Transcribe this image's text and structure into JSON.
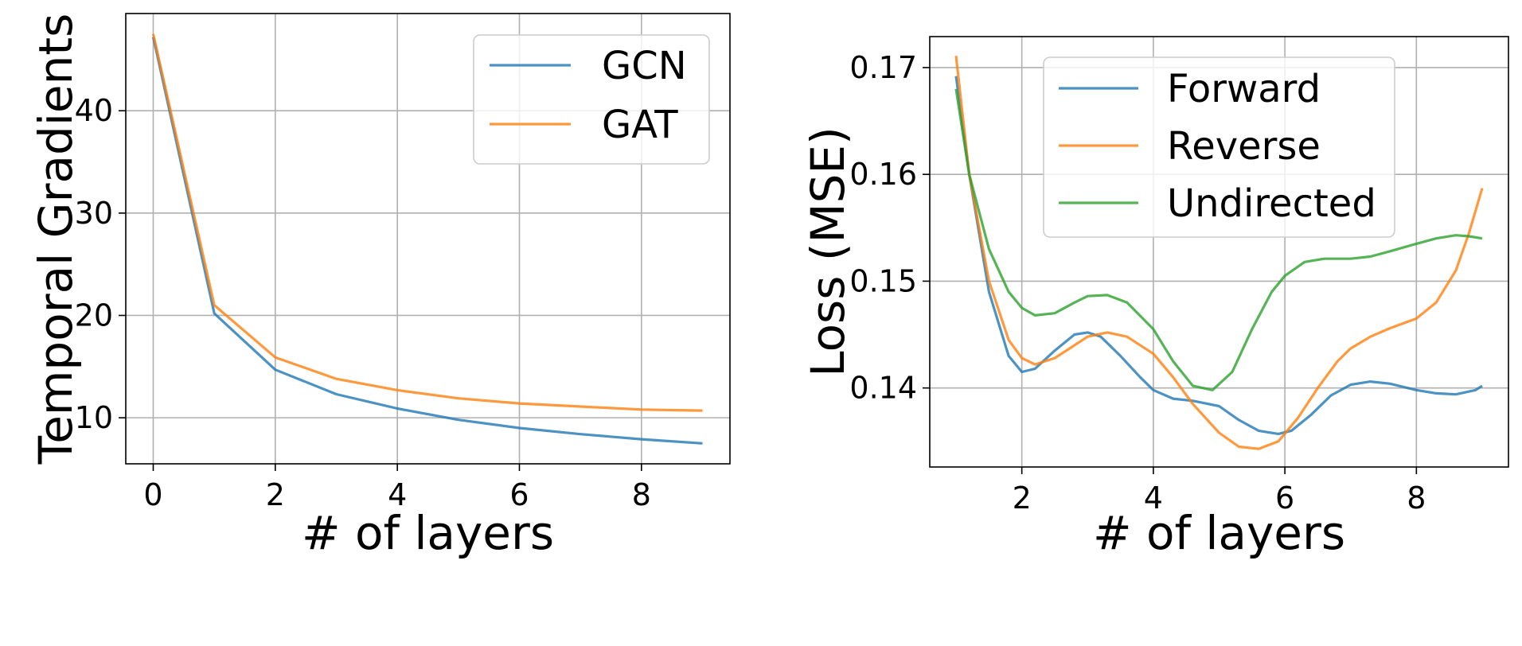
{
  "chart_data": [
    {
      "type": "line",
      "xlabel": "# of layers",
      "ylabel": "Temporal Gradients",
      "xlim": [
        -0.45,
        9.45
      ],
      "ylim": [
        5.5,
        49.5
      ],
      "xticks": [
        0,
        2,
        4,
        6,
        8
      ],
      "yticks": [
        10,
        20,
        30,
        40
      ],
      "grid": true,
      "legend_position": "upper right",
      "x": [
        0,
        1,
        2,
        3,
        4,
        5,
        6,
        7,
        8,
        9
      ],
      "series": [
        {
          "name": "GCN",
          "color": "#1f77b4",
          "values": [
            47.2,
            20.2,
            14.7,
            12.3,
            10.9,
            9.8,
            9.0,
            8.4,
            7.9,
            7.5
          ]
        },
        {
          "name": "GAT",
          "color": "#ff7f0e",
          "values": [
            47.5,
            21.0,
            15.9,
            13.8,
            12.7,
            11.9,
            11.4,
            11.1,
            10.8,
            10.7
          ]
        }
      ]
    },
    {
      "type": "line",
      "xlabel": "# of layers",
      "ylabel": "Loss (MSE)",
      "xlim": [
        0.6,
        9.4
      ],
      "ylim": [
        0.1326,
        0.1729
      ],
      "xticks": [
        2,
        4,
        6,
        8
      ],
      "yticks": [
        0.14,
        0.15,
        0.16,
        0.17
      ],
      "grid": true,
      "legend_position": "upper center",
      "series": [
        {
          "name": "Forward",
          "color": "#1f77b4",
          "x": [
            1.0,
            1.2,
            1.5,
            1.8,
            2.0,
            2.2,
            2.5,
            2.8,
            3.0,
            3.2,
            3.5,
            3.8,
            4.0,
            4.3,
            4.6,
            5.0,
            5.3,
            5.6,
            5.9,
            6.1,
            6.4,
            6.7,
            7.0,
            7.3,
            7.6,
            8.0,
            8.3,
            8.6,
            8.9,
            9.0
          ],
          "y": [
            0.1692,
            0.16,
            0.149,
            0.143,
            0.1415,
            0.1418,
            0.1435,
            0.145,
            0.1452,
            0.1448,
            0.143,
            0.141,
            0.1398,
            0.139,
            0.1388,
            0.1383,
            0.137,
            0.136,
            0.1357,
            0.136,
            0.1375,
            0.1393,
            0.1403,
            0.1406,
            0.1404,
            0.1398,
            0.1395,
            0.1394,
            0.1398,
            0.1402
          ]
        },
        {
          "name": "Reverse",
          "color": "#ff7f0e",
          "x": [
            1.0,
            1.2,
            1.5,
            1.8,
            2.0,
            2.2,
            2.5,
            2.8,
            3.0,
            3.3,
            3.6,
            4.0,
            4.3,
            4.6,
            5.0,
            5.3,
            5.6,
            5.9,
            6.2,
            6.5,
            6.8,
            7.0,
            7.3,
            7.6,
            8.0,
            8.3,
            8.6,
            8.8,
            9.0
          ],
          "y": [
            0.1711,
            0.16,
            0.15,
            0.1445,
            0.1428,
            0.1422,
            0.1428,
            0.144,
            0.1448,
            0.1452,
            0.1448,
            0.1432,
            0.141,
            0.1385,
            0.1358,
            0.1345,
            0.1343,
            0.135,
            0.1372,
            0.14,
            0.1425,
            0.1437,
            0.1448,
            0.1456,
            0.1465,
            0.148,
            0.151,
            0.1545,
            0.1587
          ]
        },
        {
          "name": "Undirected",
          "color": "#2ca02c",
          "x": [
            1.0,
            1.2,
            1.5,
            1.8,
            2.0,
            2.2,
            2.5,
            2.8,
            3.0,
            3.3,
            3.6,
            4.0,
            4.3,
            4.6,
            4.9,
            5.2,
            5.5,
            5.8,
            6.0,
            6.3,
            6.6,
            7.0,
            7.3,
            7.6,
            8.0,
            8.3,
            8.6,
            8.8,
            9.0
          ],
          "y": [
            0.168,
            0.16,
            0.153,
            0.149,
            0.1475,
            0.1468,
            0.147,
            0.148,
            0.1486,
            0.1487,
            0.148,
            0.1455,
            0.1425,
            0.1402,
            0.1398,
            0.1415,
            0.1455,
            0.149,
            0.1505,
            0.1518,
            0.1521,
            0.1521,
            0.1523,
            0.1528,
            0.1535,
            0.154,
            0.1543,
            0.1542,
            0.154
          ]
        }
      ]
    }
  ]
}
